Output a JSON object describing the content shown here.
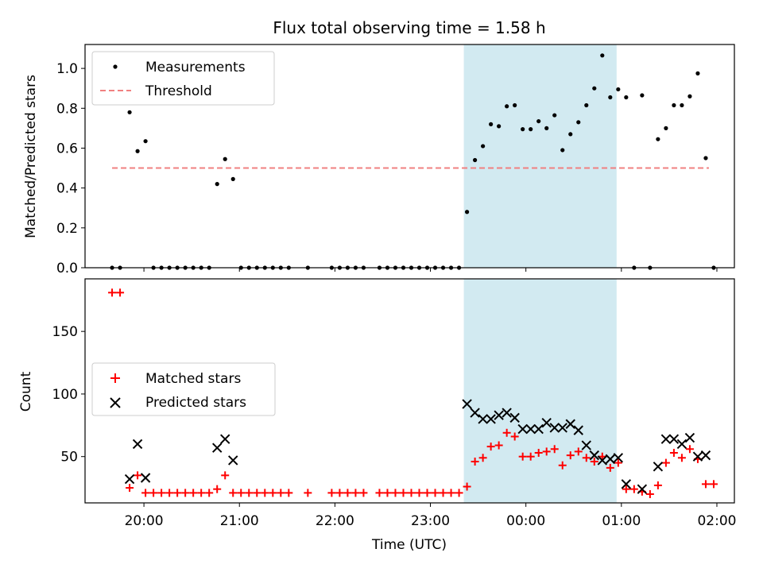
{
  "chart_data": [
    {
      "type": "scatter",
      "title": "Flux total observing time = 1.58 h",
      "xlabel": "",
      "ylabel": "Matched/Predicted stars",
      "ylim": [
        0,
        1.12
      ],
      "yticks": [
        "0.0",
        "0.2",
        "0.4",
        "0.6",
        "0.8",
        "1.0"
      ],
      "xlim": [
        "19:23",
        "02:11"
      ],
      "highlight_span": [
        "23:21",
        "00:57"
      ],
      "highlight_color": "#add8e6",
      "legend_position": "upper left",
      "series": [
        {
          "name": "Measurements",
          "color": "#000000",
          "marker": "dot",
          "points": [
            [
              "19:40",
              0
            ],
            [
              "19:45",
              0
            ],
            [
              "19:51",
              0.78
            ],
            [
              "19:56",
              0.585
            ],
            [
              "20:01",
              0.635
            ],
            [
              "20:06",
              0
            ],
            [
              "20:11",
              0
            ],
            [
              "20:16",
              0
            ],
            [
              "20:21",
              0
            ],
            [
              "20:26",
              0
            ],
            [
              "20:31",
              0
            ],
            [
              "20:36",
              0
            ],
            [
              "20:41",
              0
            ],
            [
              "20:46",
              0.42
            ],
            [
              "20:51",
              0.545
            ],
            [
              "20:56",
              0.445
            ],
            [
              "21:01",
              0
            ],
            [
              "21:06",
              0
            ],
            [
              "21:11",
              0
            ],
            [
              "21:16",
              0
            ],
            [
              "21:21",
              0
            ],
            [
              "21:26",
              0
            ],
            [
              "21:31",
              0
            ],
            [
              "21:43",
              0
            ],
            [
              "21:58",
              0
            ],
            [
              "22:03",
              0
            ],
            [
              "22:08",
              0
            ],
            [
              "22:13",
              0
            ],
            [
              "22:18",
              0
            ],
            [
              "22:28",
              0
            ],
            [
              "22:33",
              0
            ],
            [
              "22:38",
              0
            ],
            [
              "22:43",
              0
            ],
            [
              "22:48",
              0
            ],
            [
              "22:53",
              0
            ],
            [
              "22:58",
              0
            ],
            [
              "23:03",
              0
            ],
            [
              "23:08",
              0
            ],
            [
              "23:13",
              0
            ],
            [
              "23:18",
              0
            ],
            [
              "23:23",
              0.28
            ],
            [
              "23:28",
              0.54
            ],
            [
              "23:33",
              0.61
            ],
            [
              "23:38",
              0.72
            ],
            [
              "23:43",
              0.71
            ],
            [
              "23:48",
              0.81
            ],
            [
              "23:53",
              0.815
            ],
            [
              "23:58",
              0.695
            ],
            [
              "00:03",
              0.695
            ],
            [
              "00:08",
              0.735
            ],
            [
              "00:13",
              0.7
            ],
            [
              "00:18",
              0.765
            ],
            [
              "00:23",
              0.59
            ],
            [
              "00:28",
              0.67
            ],
            [
              "00:33",
              0.73
            ],
            [
              "00:38",
              0.815
            ],
            [
              "00:43",
              0.9
            ],
            [
              "00:48",
              1.065
            ],
            [
              "00:53",
              0.855
            ],
            [
              "00:58",
              0.895
            ],
            [
              "01:03",
              0.855
            ],
            [
              "01:08",
              0
            ],
            [
              "01:13",
              0.865
            ],
            [
              "01:18",
              0
            ],
            [
              "01:23",
              0.645
            ],
            [
              "01:28",
              0.7
            ],
            [
              "01:33",
              0.815
            ],
            [
              "01:38",
              0.815
            ],
            [
              "01:43",
              0.86
            ],
            [
              "01:48",
              0.975
            ],
            [
              "01:53",
              0.55
            ],
            [
              "01:58",
              0
            ]
          ]
        },
        {
          "name": "Threshold",
          "color": "#f08080",
          "marker": "dashed-line",
          "points": [
            [
              "19:40",
              0.5
            ],
            [
              "01:55",
              0.5
            ]
          ]
        }
      ]
    },
    {
      "type": "scatter",
      "title": "",
      "xlabel": "Time (UTC)",
      "ylabel": "Count",
      "ylim": [
        13,
        192
      ],
      "yticks": [
        "50",
        "100",
        "150"
      ],
      "xticks": [
        "20:00",
        "21:00",
        "22:00",
        "23:00",
        "00:00",
        "01:00",
        "02:00"
      ],
      "xlim": [
        "19:23",
        "02:11"
      ],
      "highlight_span": [
        "23:21",
        "00:57"
      ],
      "highlight_color": "#add8e6",
      "legend_position": "center left",
      "series": [
        {
          "name": "Matched stars",
          "color": "#ff0000",
          "marker": "plus",
          "points": [
            [
              "19:40",
              181
            ],
            [
              "19:45",
              181
            ],
            [
              "19:51",
              25
            ],
            [
              "19:56",
              35
            ],
            [
              "20:01",
              21
            ],
            [
              "20:06",
              21
            ],
            [
              "20:11",
              21
            ],
            [
              "20:16",
              21
            ],
            [
              "20:21",
              21
            ],
            [
              "20:26",
              21
            ],
            [
              "20:31",
              21
            ],
            [
              "20:36",
              21
            ],
            [
              "20:41",
              21
            ],
            [
              "20:46",
              24
            ],
            [
              "20:51",
              35
            ],
            [
              "20:56",
              21
            ],
            [
              "21:01",
              21
            ],
            [
              "21:06",
              21
            ],
            [
              "21:11",
              21
            ],
            [
              "21:16",
              21
            ],
            [
              "21:21",
              21
            ],
            [
              "21:26",
              21
            ],
            [
              "21:31",
              21
            ],
            [
              "21:43",
              21
            ],
            [
              "21:58",
              21
            ],
            [
              "22:03",
              21
            ],
            [
              "22:08",
              21
            ],
            [
              "22:13",
              21
            ],
            [
              "22:18",
              21
            ],
            [
              "22:28",
              21
            ],
            [
              "22:33",
              21
            ],
            [
              "22:38",
              21
            ],
            [
              "22:43",
              21
            ],
            [
              "22:48",
              21
            ],
            [
              "22:53",
              21
            ],
            [
              "22:58",
              21
            ],
            [
              "23:03",
              21
            ],
            [
              "23:08",
              21
            ],
            [
              "23:13",
              21
            ],
            [
              "23:18",
              21
            ],
            [
              "23:23",
              26
            ],
            [
              "23:28",
              46
            ],
            [
              "23:33",
              49
            ],
            [
              "23:38",
              58
            ],
            [
              "23:43",
              59
            ],
            [
              "23:48",
              69
            ],
            [
              "23:53",
              66
            ],
            [
              "23:58",
              50
            ],
            [
              "00:03",
              50
            ],
            [
              "00:08",
              53
            ],
            [
              "00:13",
              54
            ],
            [
              "00:18",
              56
            ],
            [
              "00:23",
              43
            ],
            [
              "00:28",
              51
            ],
            [
              "00:33",
              54
            ],
            [
              "00:38",
              49
            ],
            [
              "00:43",
              46
            ],
            [
              "00:48",
              50
            ],
            [
              "00:53",
              41
            ],
            [
              "00:58",
              45
            ],
            [
              "01:03",
              24
            ],
            [
              "01:08",
              24
            ],
            [
              "01:13",
              22
            ],
            [
              "01:18",
              20
            ],
            [
              "01:23",
              27
            ],
            [
              "01:28",
              45
            ],
            [
              "01:33",
              53
            ],
            [
              "01:38",
              49
            ],
            [
              "01:43",
              56
            ],
            [
              "01:48",
              48
            ],
            [
              "01:53",
              28
            ],
            [
              "01:58",
              28
            ]
          ]
        },
        {
          "name": "Predicted stars",
          "color": "#000000",
          "marker": "x",
          "points": [
            [
              "19:51",
              32
            ],
            [
              "19:56",
              60
            ],
            [
              "20:01",
              33
            ],
            [
              "20:46",
              57
            ],
            [
              "20:51",
              64
            ],
            [
              "20:56",
              47
            ],
            [
              "23:23",
              92
            ],
            [
              "23:28",
              85
            ],
            [
              "23:33",
              80
            ],
            [
              "23:38",
              80
            ],
            [
              "23:43",
              83
            ],
            [
              "23:48",
              85
            ],
            [
              "23:53",
              81
            ],
            [
              "23:58",
              72
            ],
            [
              "00:03",
              72
            ],
            [
              "00:08",
              72
            ],
            [
              "00:13",
              77
            ],
            [
              "00:18",
              73
            ],
            [
              "00:23",
              73
            ],
            [
              "00:28",
              76
            ],
            [
              "00:33",
              71
            ],
            [
              "00:38",
              59
            ],
            [
              "00:43",
              51
            ],
            [
              "00:48",
              47
            ],
            [
              "00:53",
              48
            ],
            [
              "00:58",
              49
            ],
            [
              "01:03",
              28
            ],
            [
              "01:13",
              24
            ],
            [
              "01:23",
              42
            ],
            [
              "01:28",
              64
            ],
            [
              "01:33",
              64
            ],
            [
              "01:38",
              60
            ],
            [
              "01:43",
              65
            ],
            [
              "01:48",
              50
            ],
            [
              "01:53",
              51
            ]
          ]
        }
      ]
    }
  ]
}
